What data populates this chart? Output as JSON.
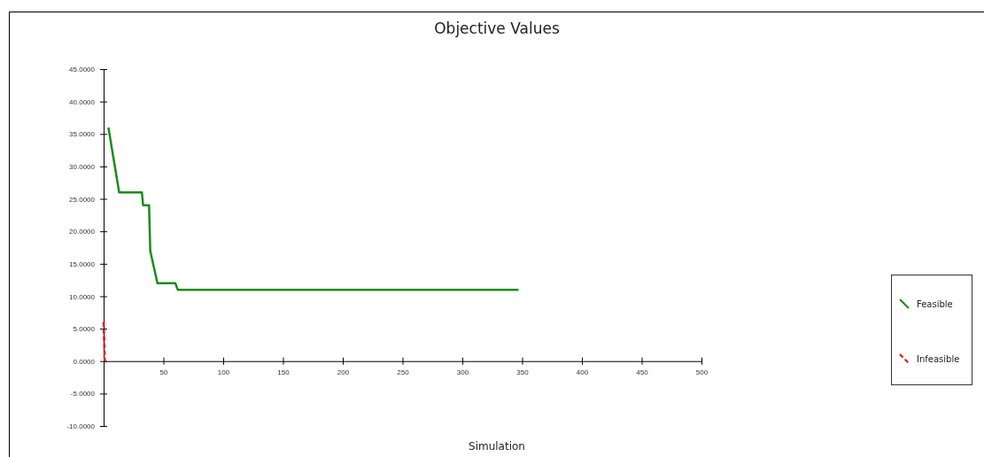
{
  "chart_data": {
    "type": "line",
    "title": "Objective Values",
    "xlabel": "Simulation",
    "xlim": [
      0,
      500
    ],
    "xticks": [
      50,
      100,
      150,
      200,
      250,
      300,
      350,
      400,
      450,
      500
    ],
    "ylim": [
      -10,
      45
    ],
    "yticks": [
      {
        "value": -10,
        "label": "-10.0000"
      },
      {
        "value": -5,
        "label": "-5.0000"
      },
      {
        "value": 0,
        "label": "0.0000"
      },
      {
        "value": 5,
        "label": "5.0000"
      },
      {
        "value": 10,
        "label": "10.0000"
      },
      {
        "value": 15,
        "label": "15.0000"
      },
      {
        "value": 20,
        "label": "20.0000"
      },
      {
        "value": 25,
        "label": "25.0000"
      },
      {
        "value": 30,
        "label": "30.0000"
      },
      {
        "value": 35,
        "label": "35.0000"
      },
      {
        "value": 40,
        "label": "40.0000"
      },
      {
        "value": 45,
        "label": "45.0000"
      }
    ],
    "grid": false,
    "legend": "right",
    "marker": "none",
    "series": [
      {
        "name": "Feasible",
        "color": "#1a8c1a",
        "line_style": "solid",
        "x": [
          4,
          13,
          32,
          33,
          38,
          39,
          45,
          60,
          62,
          347
        ],
        "values": [
          36,
          26,
          26,
          24,
          24,
          17,
          12,
          12,
          11,
          11
        ]
      },
      {
        "name": "Infeasible",
        "color": "#ff0000",
        "line_style": "dashed",
        "x": [
          0,
          1
        ],
        "values": [
          6,
          0
        ]
      }
    ]
  }
}
